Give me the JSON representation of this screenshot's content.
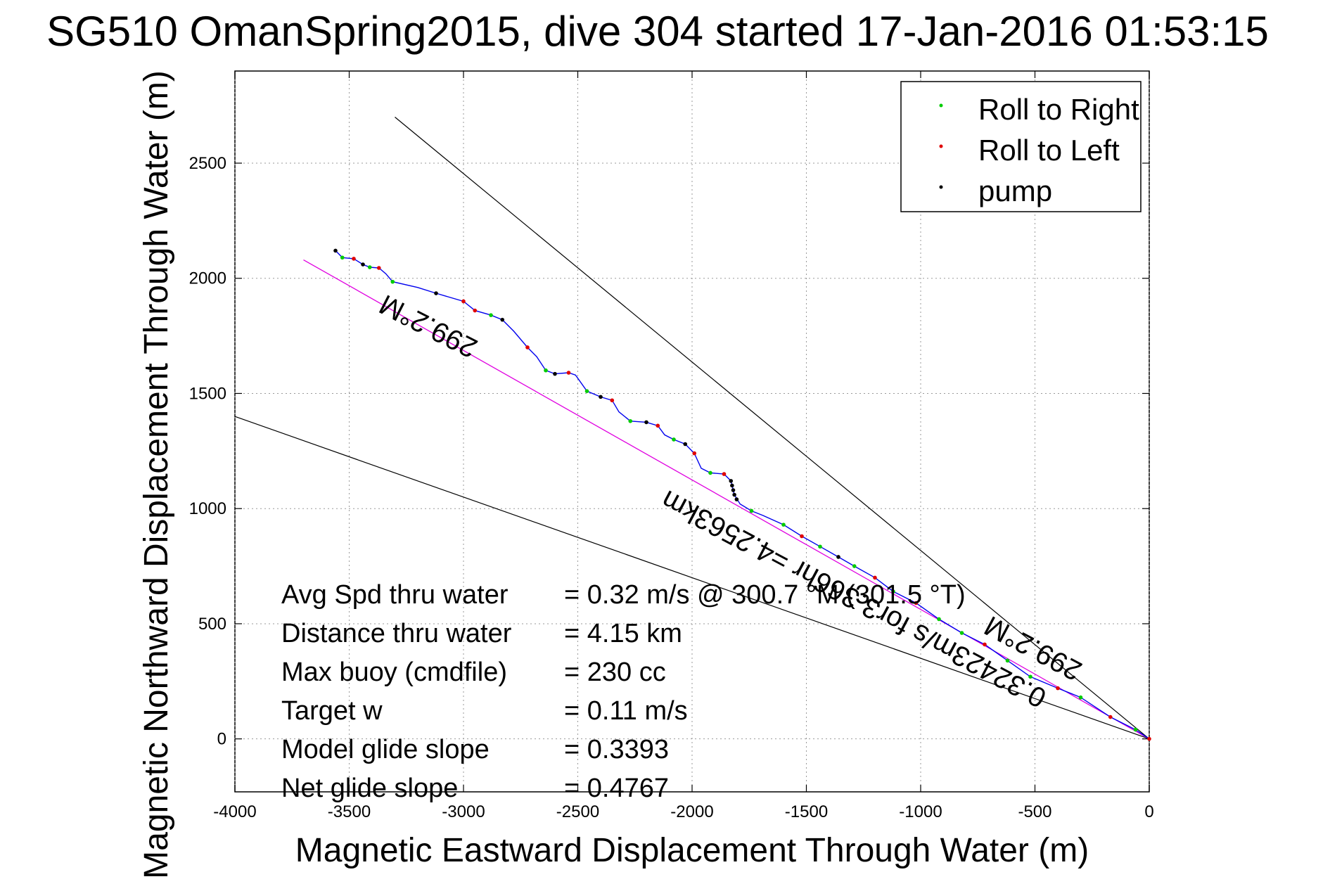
{
  "chart_data": {
    "type": "line",
    "title": "SG510 OmanSpring2015, dive 304 started 17-Jan-2016 01:53:15",
    "xlabel": "Magnetic Eastward Displacement Through Water (m)",
    "ylabel": "Magnetic Northward Displacement Through Water (m)",
    "xlim": [
      -4000,
      0
    ],
    "ylim": [
      -230,
      2900
    ],
    "xticks": [
      -4000,
      -3500,
      -3000,
      -2500,
      -2000,
      -1500,
      -1000,
      -500,
      0
    ],
    "yticks": [
      0,
      500,
      1000,
      1500,
      2000,
      2500
    ],
    "grid": true,
    "legend_position": "top-right",
    "legend": [
      {
        "label": "Roll to Right",
        "color": "#00cc00"
      },
      {
        "label": "Roll to Left",
        "color": "#e00000"
      },
      {
        "label": "pump",
        "color": "#000000"
      }
    ],
    "track": [
      [
        -3560,
        2120
      ],
      [
        -3530,
        2090
      ],
      [
        -3480,
        2085
      ],
      [
        -3440,
        2060
      ],
      [
        -3410,
        2048
      ],
      [
        -3370,
        2045
      ],
      [
        -3340,
        2020
      ],
      [
        -3310,
        1985
      ],
      [
        -3200,
        1960
      ],
      [
        -3120,
        1935
      ],
      [
        -3000,
        1900
      ],
      [
        -2950,
        1860
      ],
      [
        -2880,
        1840
      ],
      [
        -2830,
        1820
      ],
      [
        -2780,
        1770
      ],
      [
        -2720,
        1700
      ],
      [
        -2680,
        1660
      ],
      [
        -2640,
        1600
      ],
      [
        -2600,
        1585
      ],
      [
        -2540,
        1590
      ],
      [
        -2510,
        1580
      ],
      [
        -2460,
        1510
      ],
      [
        -2400,
        1485
      ],
      [
        -2350,
        1470
      ],
      [
        -2320,
        1420
      ],
      [
        -2270,
        1380
      ],
      [
        -2200,
        1375
      ],
      [
        -2150,
        1360
      ],
      [
        -2120,
        1320
      ],
      [
        -2080,
        1300
      ],
      [
        -2030,
        1280
      ],
      [
        -1990,
        1240
      ],
      [
        -1960,
        1175
      ],
      [
        -1920,
        1155
      ],
      [
        -1860,
        1150
      ],
      [
        -1830,
        1120
      ],
      [
        -1815,
        1060
      ],
      [
        -1790,
        1020
      ],
      [
        -1740,
        990
      ],
      [
        -1690,
        970
      ],
      [
        -1600,
        930
      ],
      [
        -1520,
        880
      ],
      [
        -1440,
        835
      ],
      [
        -1360,
        790
      ],
      [
        -1290,
        750
      ],
      [
        -1200,
        700
      ],
      [
        -1120,
        640
      ],
      [
        -1020,
        590
      ],
      [
        -920,
        520
      ],
      [
        -820,
        460
      ],
      [
        -720,
        410
      ],
      [
        -620,
        340
      ],
      [
        -520,
        270
      ],
      [
        -400,
        220
      ],
      [
        -300,
        180
      ],
      [
        -170,
        95
      ],
      [
        -60,
        40
      ],
      [
        0,
        0
      ]
    ],
    "roll_right_points": [
      [
        -3530,
        2090
      ],
      [
        -3410,
        2048
      ],
      [
        -3310,
        1985
      ],
      [
        -2880,
        1840
      ],
      [
        -2640,
        1600
      ],
      [
        -2460,
        1510
      ],
      [
        -2270,
        1380
      ],
      [
        -2080,
        1300
      ],
      [
        -1920,
        1155
      ],
      [
        -1740,
        990
      ],
      [
        -1600,
        930
      ],
      [
        -1440,
        835
      ],
      [
        -1290,
        750
      ],
      [
        -1120,
        640
      ],
      [
        -920,
        520
      ],
      [
        -820,
        460
      ],
      [
        -620,
        340
      ],
      [
        -520,
        270
      ],
      [
        -300,
        180
      ],
      [
        -60,
        40
      ]
    ],
    "roll_left_points": [
      [
        -3480,
        2085
      ],
      [
        -3370,
        2045
      ],
      [
        -3000,
        1900
      ],
      [
        -2950,
        1860
      ],
      [
        -2720,
        1700
      ],
      [
        -2540,
        1590
      ],
      [
        -2350,
        1470
      ],
      [
        -2150,
        1360
      ],
      [
        -1990,
        1240
      ],
      [
        -1860,
        1150
      ],
      [
        -1520,
        880
      ],
      [
        -1200,
        700
      ],
      [
        -1020,
        590
      ],
      [
        -720,
        410
      ],
      [
        -400,
        220
      ],
      [
        -170,
        95
      ],
      [
        0,
        0
      ]
    ],
    "pump_points": [
      [
        -3560,
        2120
      ],
      [
        -3440,
        2060
      ],
      [
        -3120,
        1935
      ],
      [
        -2830,
        1820
      ],
      [
        -2600,
        1585
      ],
      [
        -2400,
        1485
      ],
      [
        -2200,
        1375
      ],
      [
        -2030,
        1280
      ],
      [
        -1830,
        1120
      ],
      [
        -1825,
        1100
      ],
      [
        -1820,
        1080
      ],
      [
        -1815,
        1060
      ],
      [
        -1805,
        1040
      ],
      [
        -1360,
        790
      ]
    ],
    "heading_line": [
      [
        -3700,
        2080
      ],
      [
        0,
        0
      ]
    ],
    "bound_line_upper": [
      [
        -3300,
        2700
      ],
      [
        0,
        0
      ]
    ],
    "bound_line_lower": [
      [
        -4000,
        1400
      ],
      [
        0,
        0
      ]
    ],
    "line_colors": {
      "track": "#0000ee",
      "heading_line": "#e000e0",
      "bound_lines": "#000000"
    },
    "annotations": {
      "upper_heading": "299.2°M",
      "lower_heading": "299.2°M",
      "distance": "0.32423m/s for3.366hr =4.2563km"
    },
    "stats": [
      {
        "label": "Avg Spd thru water",
        "value": "=  0.32 m/s @ 300.7  °M (301.5 °T)"
      },
      {
        "label": "Distance thru water",
        "value": "=  4.15 km"
      },
      {
        "label": "Max buoy (cmdfile)",
        "value": "= 230 cc"
      },
      {
        "label": "Target w",
        "value": "= 0.11 m/s"
      },
      {
        "label": "Model glide slope",
        "value": "= 0.3393"
      },
      {
        "label": "Net glide slope",
        "value": "= 0.4767"
      }
    ]
  }
}
